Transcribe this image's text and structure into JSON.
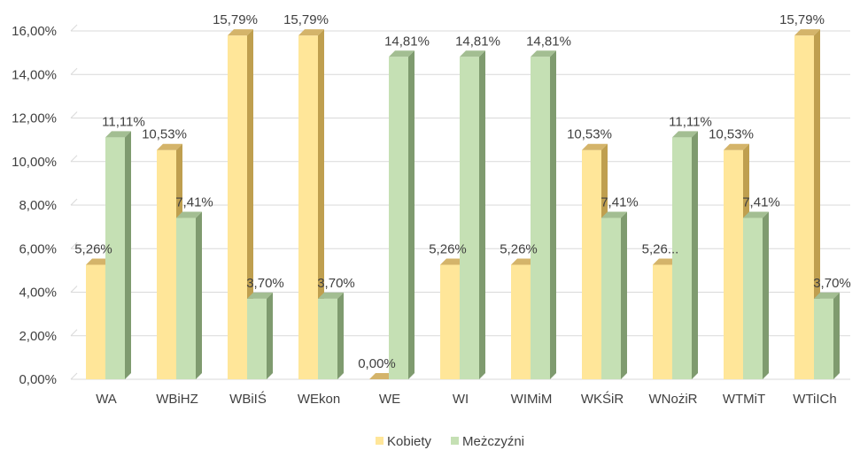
{
  "chart_data": {
    "type": "bar",
    "categories": [
      "WA",
      "WBiHZ",
      "WBiIŚ",
      "WEkon",
      "WE",
      "WI",
      "WIMiM",
      "WKŚiR",
      "WNożiR",
      "WTMiT",
      "WTiICh"
    ],
    "series": [
      {
        "name": "Kobiety",
        "values": [
          5.26,
          10.53,
          15.79,
          15.79,
          0.0,
          5.26,
          5.26,
          10.53,
          5.26,
          10.53,
          15.79
        ],
        "labels": [
          "5,26%",
          "10,53%",
          "15,79%",
          "15,79%",
          "0,00%",
          "5,26%",
          "5,26%",
          "10,53%",
          "5,26...",
          "10,53%",
          "15,79%"
        ],
        "color": "#ffe699",
        "side_color": "#bf9f4f",
        "top_color": "#d4b46a"
      },
      {
        "name": "Meżczyźni",
        "values": [
          11.11,
          7.41,
          3.7,
          3.7,
          14.81,
          14.81,
          14.81,
          7.41,
          11.11,
          7.41,
          3.7
        ],
        "labels": [
          "11,11%",
          "7,41%",
          "3,70%",
          "3,70%",
          "14,81%",
          "14,81%",
          "14,81%",
          "7,41%",
          "11,11%",
          "7,41%",
          "3,70%"
        ],
        "color": "#c5e0b4",
        "side_color": "#7f9b6f",
        "top_color": "#a3be92"
      }
    ],
    "y_ticks": [
      "0,00%",
      "2,00%",
      "4,00%",
      "6,00%",
      "8,00%",
      "10,00%",
      "12,00%",
      "14,00%",
      "16,00%"
    ],
    "ylim": [
      0,
      16
    ],
    "grid": true,
    "legend_position": "bottom",
    "title": "",
    "xlabel": "",
    "ylabel": ""
  }
}
